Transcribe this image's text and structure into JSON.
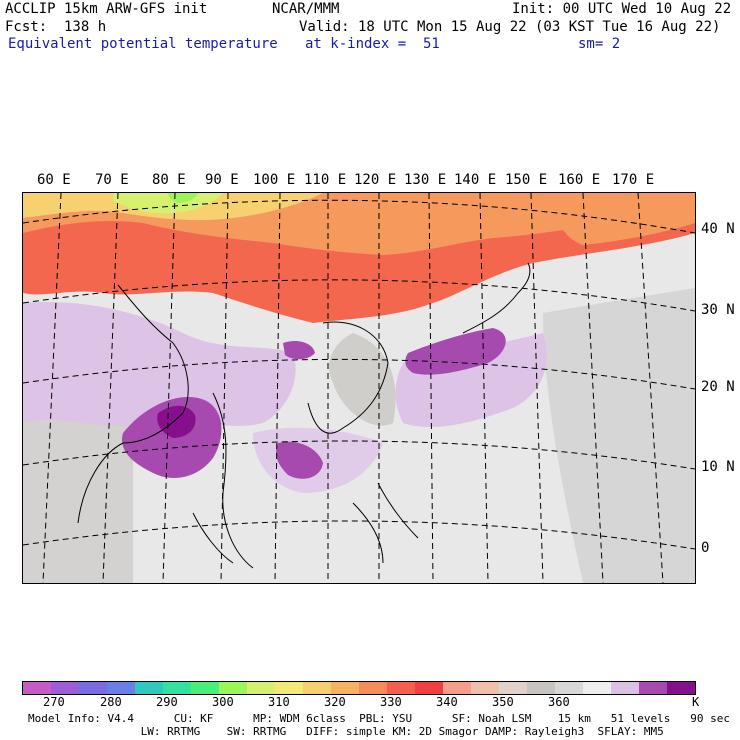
{
  "header": {
    "line1_left": "ACCLIP 15km ARW-GFS init",
    "line1_center": "NCAR/MMM",
    "line1_right": "Init: 00 UTC Wed 10 Aug 22",
    "line2_left": "Fcst:  138 h",
    "line2_right": "Valid: 18 UTC Mon 15 Aug 22 (03 KST Tue 16 Aug 22)",
    "line3_left": "Equivalent potential temperature",
    "line3_mid": "at k-index =  51",
    "line3_right": "sm= 2"
  },
  "map": {
    "lon_labels": [
      "60 E",
      "70 E",
      "80 E",
      "90 E",
      "100 E",
      "110 E",
      "120 E",
      "130 E",
      "140 E",
      "150 E",
      "160 E",
      "170 E"
    ],
    "lat_labels": [
      "40 N",
      "30 N",
      "20 N",
      "10 N",
      "0"
    ]
  },
  "colorbar": {
    "colors": [
      "#c65bc6",
      "#a05cd6",
      "#7b6be0",
      "#6a7fe6",
      "#2fc8c0",
      "#33e0a0",
      "#48f07a",
      "#9cf558",
      "#d6f070",
      "#f4e876",
      "#f6cf6e",
      "#f5b262",
      "#f58a5a",
      "#f5604e",
      "#f23e3e",
      "#f59f8a",
      "#f0c0a8",
      "#e0d2c8",
      "#c8c4c2",
      "#d8d8d8",
      "#eeeeee",
      "#dcc0e6",
      "#a64ab0",
      "#86108c"
    ],
    "labels": [
      "270",
      "280",
      "290",
      "300",
      "310",
      "320",
      "330",
      "340",
      "350",
      "360",
      "K"
    ]
  },
  "footer": {
    "line1": "Model Info: V4.4      CU: KF      MP: WDM 6class  PBL: YSU      SF: Noah LSM    15 km   51 levels   90 sec",
    "line2": "                 LW: RRTMG    SW: RRTMG   DIFF: simple KM: 2D Smagor DAMP: Rayleigh3  SFLAY: MM5"
  }
}
